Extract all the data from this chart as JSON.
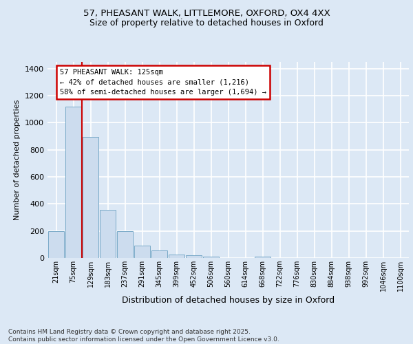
{
  "title_line1": "57, PHEASANT WALK, LITTLEMORE, OXFORD, OX4 4XX",
  "title_line2": "Size of property relative to detached houses in Oxford",
  "xlabel": "Distribution of detached houses by size in Oxford",
  "ylabel": "Number of detached properties",
  "categories": [
    "21sqm",
    "75sqm",
    "129sqm",
    "183sqm",
    "237sqm",
    "291sqm",
    "345sqm",
    "399sqm",
    "452sqm",
    "506sqm",
    "560sqm",
    "614sqm",
    "668sqm",
    "722sqm",
    "776sqm",
    "830sqm",
    "884sqm",
    "938sqm",
    "992sqm",
    "1046sqm",
    "1100sqm"
  ],
  "values": [
    197,
    1120,
    895,
    355,
    198,
    93,
    58,
    25,
    20,
    12,
    0,
    0,
    12,
    0,
    0,
    0,
    0,
    0,
    0,
    0,
    0
  ],
  "bar_color": "#ccdcee",
  "bar_edge_color": "#7aaac8",
  "vline_pos": 1.5,
  "vline_color": "#cc0000",
  "annotation_text": "57 PHEASANT WALK: 125sqm\n← 42% of detached houses are smaller (1,216)\n58% of semi-detached houses are larger (1,694) →",
  "annotation_box_facecolor": "#ffffff",
  "annotation_box_edgecolor": "#cc0000",
  "background_color": "#dce8f5",
  "grid_color": "#ffffff",
  "footer_line1": "Contains HM Land Registry data © Crown copyright and database right 2025.",
  "footer_line2": "Contains public sector information licensed under the Open Government Licence v3.0.",
  "ylim": [
    0,
    1450
  ],
  "yticks": [
    0,
    200,
    400,
    600,
    800,
    1000,
    1200,
    1400
  ],
  "title_fontsize": 9.5,
  "subtitle_fontsize": 9,
  "ylabel_fontsize": 8,
  "xlabel_fontsize": 9,
  "tick_fontsize": 8,
  "xtick_fontsize": 7,
  "annot_fontsize": 7.5,
  "footer_fontsize": 6.5
}
